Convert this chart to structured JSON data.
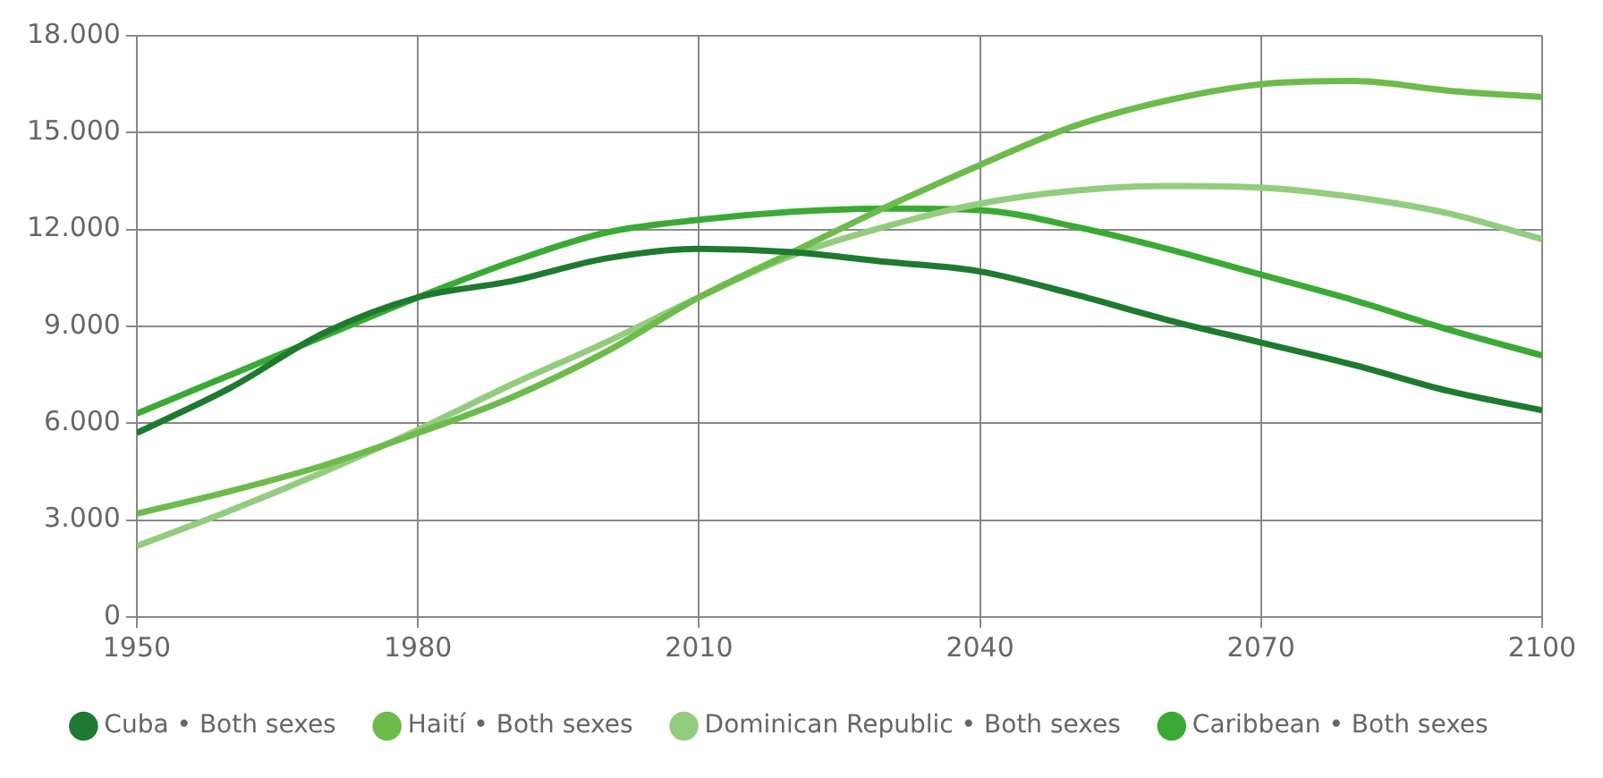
{
  "chart_data": {
    "type": "line",
    "x": [
      1950,
      1960,
      1970,
      1980,
      1990,
      2000,
      2010,
      2020,
      2030,
      2040,
      2050,
      2060,
      2070,
      2080,
      2090,
      2100
    ],
    "series": [
      {
        "name": "Cuba • Both sexes",
        "color": "#1e7a30",
        "values": [
          5700,
          7100,
          8800,
          9900,
          10400,
          11100,
          11400,
          11300,
          11000,
          10700,
          10000,
          9200,
          8500,
          7800,
          7000,
          6400
        ]
      },
      {
        "name": "Haití • Both sexes",
        "color": "#6cbb4b",
        "values": [
          3200,
          3900,
          4700,
          5700,
          6800,
          8200,
          9900,
          11300,
          12700,
          14000,
          15200,
          16000,
          16500,
          16600,
          16300,
          16100
        ]
      },
      {
        "name": "Dominican Republic • Both sexes",
        "color": "#93cc7e",
        "values": [
          2200,
          3300,
          4500,
          5800,
          7200,
          8500,
          9900,
          11200,
          12100,
          12800,
          13200,
          13350,
          13300,
          13000,
          12500,
          11700
        ]
      },
      {
        "name": "Caribbean • Both sexes",
        "color": "#3aaa35",
        "values": [
          6300,
          7500,
          8700,
          9900,
          11000,
          11900,
          12300,
          12550,
          12650,
          12600,
          12100,
          11400,
          10600,
          9800,
          8900,
          8100
        ]
      }
    ],
    "xlim": [
      1950,
      2100
    ],
    "xticks": [
      1950,
      1980,
      2010,
      2040,
      2070,
      2100
    ],
    "ylim": [
      0,
      18000
    ],
    "yticks": [
      {
        "value": 0,
        "label": "0"
      },
      {
        "value": 3000,
        "label": "3.000"
      },
      {
        "value": 6000,
        "label": "6.000"
      },
      {
        "value": 9000,
        "label": "9.000"
      },
      {
        "value": 12000,
        "label": "12.000"
      },
      {
        "value": 15000,
        "label": "15.000"
      },
      {
        "value": 18000,
        "label": "18.000"
      }
    ],
    "grid": true,
    "legend": "bottom"
  }
}
